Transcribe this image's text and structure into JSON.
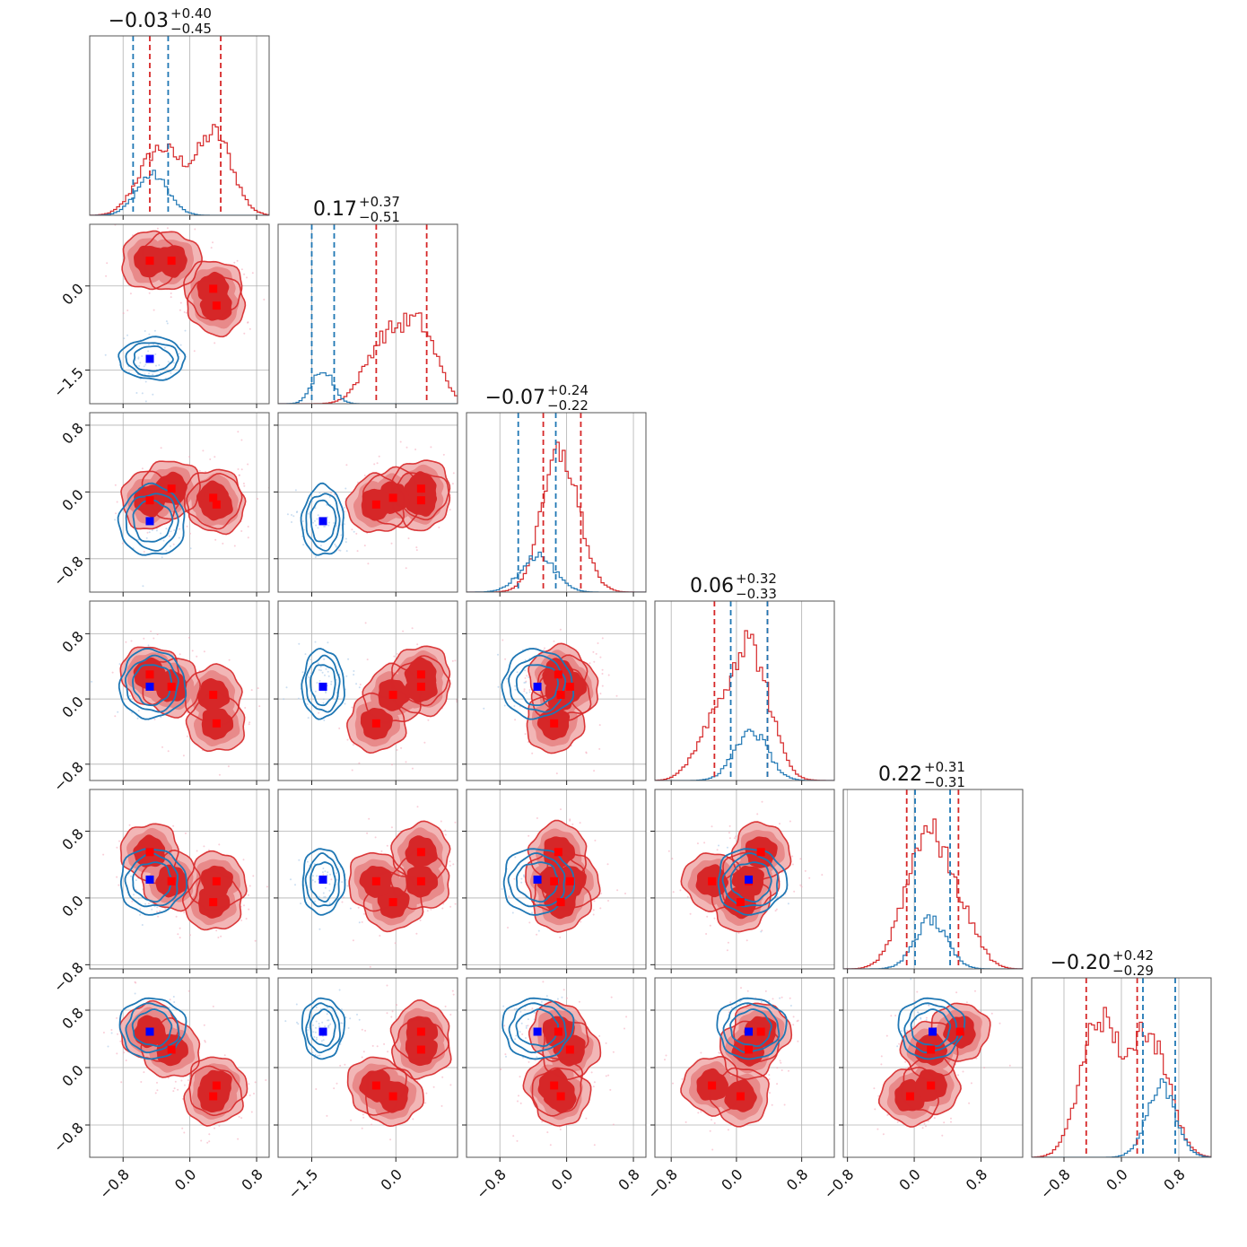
{
  "chart_data": {
    "type": "corner",
    "n_params": 6,
    "colors": {
      "model_a": "#d62728",
      "model_b": "#1f77b4",
      "truth_a": "#ff0000",
      "truth_b": "#0000ff",
      "grid": "#b0b0b0"
    },
    "series": [
      {
        "name": "model_a",
        "color": "#d62728",
        "style": "filled-contours"
      },
      {
        "name": "model_b",
        "color": "#1f77b4",
        "style": "line-contours"
      }
    ],
    "params": [
      {
        "index": 0,
        "range": [
          -1.2,
          0.95
        ],
        "ticks": [
          -0.8,
          0.0,
          0.8
        ],
        "tick_labels": [
          "−0.8",
          "0.0",
          "0.8"
        ],
        "title": {
          "main": "−0.03",
          "upper": "+0.40",
          "lower": "−0.45"
        },
        "quantiles_a": [
          -0.48,
          0.37
        ],
        "quantiles_b": [
          -0.68,
          -0.26
        ]
      },
      {
        "index": 1,
        "range": [
          -2.1,
          1.1
        ],
        "ticks": [
          -1.5,
          0.0
        ],
        "tick_labels": [
          "−1.5",
          "0.0"
        ],
        "title": {
          "main": "0.17",
          "upper": "+0.37",
          "lower": "−0.51"
        },
        "quantiles_a": [
          -0.35,
          0.55
        ],
        "quantiles_b": [
          -1.5,
          -1.1
        ]
      },
      {
        "index": 2,
        "range": [
          -1.2,
          0.95
        ],
        "ticks": [
          -0.8,
          0.0,
          0.8
        ],
        "tick_labels": [
          "−0.8",
          "0.0",
          "0.8"
        ],
        "title": {
          "main": "−0.07",
          "upper": "+0.24",
          "lower": "−0.22"
        },
        "quantiles_a": [
          -0.28,
          0.17
        ],
        "quantiles_b": [
          -0.58,
          -0.13
        ]
      },
      {
        "index": 3,
        "range": [
          -1.0,
          1.2
        ],
        "ticks": [
          -0.8,
          0.0,
          0.8
        ],
        "tick_labels": [
          "−0.8",
          "0.0",
          "0.8"
        ],
        "title": {
          "main": "0.06",
          "upper": "+0.32",
          "lower": "−0.33"
        },
        "quantiles_a": [
          -0.27,
          0.38
        ],
        "quantiles_b": [
          -0.07,
          0.38
        ]
      },
      {
        "index": 4,
        "range": [
          -0.85,
          1.3
        ],
        "ticks": [
          -0.8,
          0.0,
          0.8
        ],
        "tick_labels": [
          "−0.8",
          "0.0",
          "0.8"
        ],
        "title": {
          "main": "0.22",
          "upper": "+0.31",
          "lower": "−0.31"
        },
        "quantiles_a": [
          -0.09,
          0.53
        ],
        "quantiles_b": [
          0.01,
          0.43
        ]
      },
      {
        "index": 5,
        "range": [
          -1.25,
          1.25
        ],
        "ticks": [
          -0.8,
          0.0,
          0.8
        ],
        "tick_labels": [
          "−0.8",
          "0.0",
          "0.8"
        ],
        "title": {
          "main": "−0.20",
          "upper": "+0.42",
          "lower": "−0.29"
        },
        "quantiles_a": [
          -0.49,
          0.22
        ],
        "quantiles_b": [
          0.3,
          0.75
        ]
      }
    ],
    "modes_a": [
      [
        -0.48,
        0.45,
        -0.1,
        0.3,
        0.55,
        0.5
      ],
      [
        -0.22,
        0.45,
        0.04,
        0.15,
        0.2,
        0.25
      ],
      [
        0.28,
        -0.05,
        -0.07,
        0.05,
        -0.05,
        -0.4
      ],
      [
        0.32,
        -0.35,
        -0.15,
        -0.3,
        0.2,
        -0.25
      ]
    ],
    "truth_b": [
      -0.48,
      -1.3,
      -0.35,
      0.15,
      0.22,
      0.5
    ],
    "blue_centers": [
      -0.45,
      -1.3,
      -0.35,
      0.18,
      0.2,
      0.55
    ]
  }
}
